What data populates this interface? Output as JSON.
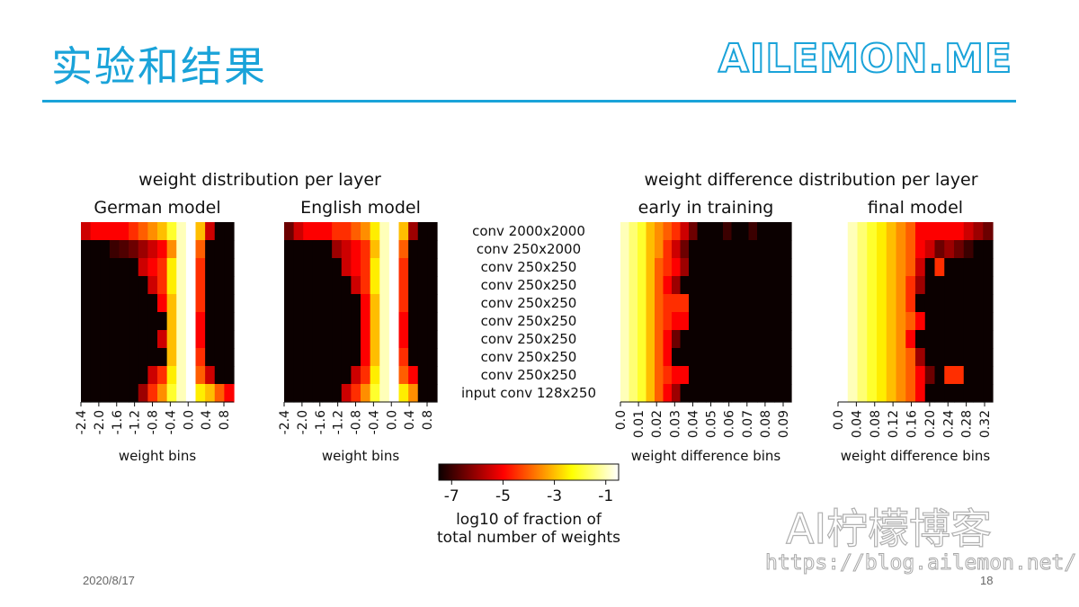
{
  "slide": {
    "title": "实验和结果",
    "brand": "AILEMON.ME",
    "date": "2020/8/17",
    "page": "18",
    "watermark_name": "AI柠檬博客",
    "watermark_url": "https://blog.ailemon.net/"
  },
  "chart_data": {
    "type": "heatmap",
    "colormap": "hot",
    "group_titles": [
      "weight distribution per layer",
      "weight difference distribution per layer"
    ],
    "row_labels": [
      "conv 2000x2000",
      "conv 250x2000",
      "conv 250x250",
      "conv 250x250",
      "conv 250x250",
      "conv 250x250",
      "conv 250x250",
      "conv 250x250",
      "conv 250x250",
      "input conv 128x250"
    ],
    "colorbar": {
      "ticks": [
        "-7",
        "-5",
        "-3",
        "-1"
      ],
      "range": [
        -7.5,
        -0.5
      ],
      "label_lines": [
        "log10 of fraction of",
        "total number of weights"
      ]
    },
    "panels": [
      {
        "title": "German model",
        "xlabel": "weight bins",
        "xticks": [
          "-2.4",
          "-2.0",
          "-1.6",
          "-1.2",
          "-0.8",
          "-0.4",
          "0.0",
          "0.4",
          "0.8"
        ],
        "values": [
          [
            -5.5,
            -5.0,
            -5.0,
            -5.0,
            -5.0,
            -4.5,
            -4.0,
            -3.5,
            -3.0,
            -2.0,
            -1.0,
            -0.5,
            -3.0,
            -5.5,
            -7.5,
            -7.5
          ],
          [
            -7.5,
            -7.5,
            -7.5,
            -7.0,
            -6.8,
            -6.5,
            -6.0,
            -5.5,
            -5.0,
            -3.5,
            -1.0,
            -0.5,
            -4.0,
            -7.5,
            -7.5,
            -7.5
          ],
          [
            -7.5,
            -7.5,
            -7.5,
            -7.5,
            -7.5,
            -7.5,
            -5.5,
            -5.0,
            -4.5,
            -2.5,
            -1.0,
            -0.5,
            -4.5,
            -7.5,
            -7.5,
            -7.5
          ],
          [
            -7.5,
            -7.5,
            -7.5,
            -7.5,
            -7.5,
            -7.5,
            -7.5,
            -5.5,
            -4.5,
            -2.5,
            -1.0,
            -0.5,
            -4.5,
            -7.5,
            -7.5,
            -7.5
          ],
          [
            -7.5,
            -7.5,
            -7.5,
            -7.5,
            -7.5,
            -7.5,
            -7.5,
            -7.5,
            -5.0,
            -3.0,
            -1.0,
            -0.5,
            -4.5,
            -7.5,
            -7.5,
            -7.5
          ],
          [
            -7.5,
            -7.5,
            -7.5,
            -7.5,
            -7.5,
            -7.5,
            -7.5,
            -7.5,
            -7.5,
            -3.0,
            -1.0,
            -0.5,
            -5.0,
            -7.5,
            -7.5,
            -7.5
          ],
          [
            -7.5,
            -7.5,
            -7.5,
            -7.5,
            -7.5,
            -7.5,
            -7.5,
            -7.5,
            -5.5,
            -3.0,
            -1.0,
            -0.5,
            -5.0,
            -7.5,
            -7.5,
            -7.5
          ],
          [
            -7.5,
            -7.5,
            -7.5,
            -7.5,
            -7.5,
            -7.5,
            -7.5,
            -7.5,
            -7.5,
            -3.0,
            -1.0,
            -0.5,
            -4.5,
            -7.5,
            -7.5,
            -7.5
          ],
          [
            -7.5,
            -7.5,
            -7.5,
            -7.5,
            -7.5,
            -7.5,
            -7.5,
            -5.5,
            -4.5,
            -2.5,
            -1.0,
            -0.5,
            -4.0,
            -5.5,
            -7.5,
            -7.5
          ],
          [
            -7.5,
            -7.5,
            -7.5,
            -7.5,
            -7.5,
            -7.5,
            -6.0,
            -4.5,
            -3.5,
            -2.0,
            -1.0,
            -0.5,
            -2.5,
            -3.0,
            -4.0,
            -5.0
          ]
        ]
      },
      {
        "title": "English model",
        "xlabel": "weight bins",
        "xticks": [
          "-2.4",
          "-2.0",
          "-1.6",
          "-1.2",
          "-0.8",
          "-0.4",
          "0.0",
          "0.4",
          "0.8"
        ],
        "values": [
          [
            -6.5,
            -5.5,
            -5.0,
            -5.0,
            -5.0,
            -4.5,
            -4.5,
            -4.0,
            -3.5,
            -2.5,
            -1.0,
            -0.5,
            -3.0,
            -6.0,
            -7.5,
            -7.5
          ],
          [
            -7.5,
            -7.5,
            -7.5,
            -7.5,
            -7.5,
            -6.0,
            -5.5,
            -5.0,
            -4.5,
            -3.0,
            -1.0,
            -0.5,
            -4.0,
            -7.5,
            -7.5,
            -7.5
          ],
          [
            -7.5,
            -7.5,
            -7.5,
            -7.5,
            -7.5,
            -7.5,
            -5.5,
            -5.0,
            -4.5,
            -2.5,
            -1.0,
            -0.5,
            -4.5,
            -7.5,
            -7.5,
            -7.5
          ],
          [
            -7.5,
            -7.5,
            -7.5,
            -7.5,
            -7.5,
            -7.5,
            -7.5,
            -5.5,
            -4.5,
            -2.5,
            -1.0,
            -0.5,
            -4.5,
            -7.5,
            -7.5,
            -7.5
          ],
          [
            -7.5,
            -7.5,
            -7.5,
            -7.5,
            -7.5,
            -7.5,
            -7.5,
            -7.5,
            -5.0,
            -3.0,
            -1.0,
            -0.5,
            -4.5,
            -7.5,
            -7.5,
            -7.5
          ],
          [
            -7.5,
            -7.5,
            -7.5,
            -7.5,
            -7.5,
            -7.5,
            -7.5,
            -7.5,
            -5.0,
            -3.0,
            -1.0,
            -0.5,
            -5.0,
            -7.5,
            -7.5,
            -7.5
          ],
          [
            -7.5,
            -7.5,
            -7.5,
            -7.5,
            -7.5,
            -7.5,
            -7.5,
            -7.5,
            -5.0,
            -3.0,
            -1.0,
            -0.5,
            -5.0,
            -7.5,
            -7.5,
            -7.5
          ],
          [
            -7.5,
            -7.5,
            -7.5,
            -7.5,
            -7.5,
            -7.5,
            -7.5,
            -7.5,
            -5.0,
            -3.0,
            -1.0,
            -0.5,
            -4.5,
            -7.5,
            -7.5,
            -7.5
          ],
          [
            -7.5,
            -7.5,
            -7.5,
            -7.5,
            -7.5,
            -7.5,
            -7.5,
            -5.5,
            -4.5,
            -2.5,
            -1.0,
            -0.5,
            -4.0,
            -5.0,
            -7.5,
            -7.5
          ],
          [
            -7.5,
            -7.5,
            -7.5,
            -7.5,
            -7.5,
            -7.5,
            -5.5,
            -4.5,
            -3.5,
            -2.0,
            -1.0,
            -0.5,
            -2.5,
            -3.5,
            -7.5,
            -7.5
          ]
        ]
      },
      {
        "title": "early in training",
        "xlabel": "weight difference bins",
        "xticks": [
          "0.0",
          "0.01",
          "0.02",
          "0.03",
          "0.04",
          "0.05",
          "0.06",
          "0.07",
          "0.08",
          "0.09"
        ],
        "values": [
          [
            -1.0,
            -1.5,
            -2.0,
            -3.0,
            -3.5,
            -4.0,
            -4.5,
            -5.5,
            -6.5,
            -7.5,
            -7.5,
            -7.5,
            -7.0,
            -7.5,
            -7.5,
            -7.0,
            -7.5,
            -7.5,
            -7.5,
            -7.5
          ],
          [
            -1.0,
            -1.5,
            -2.0,
            -3.0,
            -3.5,
            -4.5,
            -5.5,
            -6.5,
            -7.5,
            -7.5,
            -7.5,
            -7.5,
            -7.5,
            -7.5,
            -7.5,
            -7.5,
            -7.5,
            -7.5,
            -7.5,
            -7.5
          ],
          [
            -1.0,
            -1.5,
            -2.0,
            -3.0,
            -4.0,
            -4.5,
            -5.0,
            -6.0,
            -7.5,
            -7.5,
            -7.5,
            -7.5,
            -7.5,
            -7.5,
            -7.5,
            -7.5,
            -7.5,
            -7.5,
            -7.5,
            -7.5
          ],
          [
            -1.0,
            -1.5,
            -2.0,
            -3.0,
            -4.0,
            -5.0,
            -6.0,
            -7.5,
            -7.5,
            -7.5,
            -7.5,
            -7.5,
            -7.5,
            -7.5,
            -7.5,
            -7.5,
            -7.5,
            -7.5,
            -7.5,
            -7.5
          ],
          [
            -1.0,
            -1.5,
            -2.0,
            -3.0,
            -4.0,
            -4.5,
            -4.5,
            -4.5,
            -7.5,
            -7.5,
            -7.5,
            -7.5,
            -7.5,
            -7.5,
            -7.5,
            -7.5,
            -7.5,
            -7.5,
            -7.5,
            -7.5
          ],
          [
            -1.0,
            -1.5,
            -2.0,
            -3.0,
            -4.0,
            -4.5,
            -5.0,
            -5.0,
            -7.5,
            -7.5,
            -7.5,
            -7.5,
            -7.5,
            -7.5,
            -7.5,
            -7.5,
            -7.5,
            -7.5,
            -7.5,
            -7.5
          ],
          [
            -1.0,
            -1.5,
            -2.0,
            -3.0,
            -4.0,
            -5.0,
            -6.5,
            -7.5,
            -7.5,
            -7.5,
            -7.5,
            -7.5,
            -7.5,
            -7.5,
            -7.5,
            -7.5,
            -7.5,
            -7.5,
            -7.5,
            -7.5
          ],
          [
            -1.0,
            -1.5,
            -2.0,
            -3.0,
            -4.0,
            -5.0,
            -7.5,
            -7.5,
            -7.5,
            -7.5,
            -7.5,
            -7.5,
            -7.5,
            -7.5,
            -7.5,
            -7.5,
            -7.5,
            -7.5,
            -7.5,
            -7.5
          ],
          [
            -1.0,
            -1.5,
            -2.0,
            -3.0,
            -4.0,
            -4.5,
            -5.0,
            -5.0,
            -7.5,
            -7.5,
            -7.5,
            -7.5,
            -7.5,
            -7.5,
            -7.5,
            -7.5,
            -7.5,
            -7.5,
            -7.5,
            -7.5
          ],
          [
            -1.0,
            -1.5,
            -2.0,
            -3.0,
            -4.0,
            -5.0,
            -6.0,
            -7.5,
            -7.5,
            -7.5,
            -7.5,
            -7.5,
            -7.5,
            -7.5,
            -7.5,
            -7.5,
            -7.5,
            -7.5,
            -7.5,
            -7.5
          ]
        ]
      },
      {
        "title": "final model",
        "xlabel": "weight difference bins",
        "xticks": [
          "0.0",
          "0.04",
          "0.08",
          "0.12",
          "0.16",
          "0.20",
          "0.24",
          "0.28",
          "0.32"
        ],
        "values": [
          [
            -0.5,
            -1.0,
            -1.5,
            -2.0,
            -2.5,
            -3.0,
            -3.5,
            -4.0,
            -5.0,
            -5.0,
            -5.0,
            -5.0,
            -5.0,
            -5.5,
            -6.0,
            -6.5
          ],
          [
            -0.5,
            -1.0,
            -1.5,
            -2.0,
            -2.5,
            -3.0,
            -3.5,
            -4.0,
            -5.0,
            -5.5,
            -6.5,
            -6.0,
            -6.5,
            -7.0,
            -7.5,
            -7.5
          ],
          [
            -0.5,
            -1.0,
            -1.5,
            -2.0,
            -2.5,
            -3.0,
            -3.5,
            -4.0,
            -5.5,
            -7.5,
            -4.5,
            -7.5,
            -7.5,
            -7.5,
            -7.5,
            -7.5
          ],
          [
            -0.5,
            -1.0,
            -1.5,
            -2.0,
            -2.5,
            -3.0,
            -3.5,
            -4.5,
            -6.0,
            -7.5,
            -7.5,
            -7.5,
            -7.5,
            -7.5,
            -7.5,
            -7.5
          ],
          [
            -0.5,
            -1.0,
            -1.5,
            -2.0,
            -2.5,
            -3.0,
            -3.5,
            -4.5,
            -7.5,
            -7.5,
            -7.5,
            -7.5,
            -7.5,
            -7.5,
            -7.5,
            -7.5
          ],
          [
            -0.5,
            -1.0,
            -1.5,
            -2.0,
            -2.5,
            -3.0,
            -3.5,
            -4.0,
            -5.0,
            -7.5,
            -7.5,
            -7.5,
            -7.5,
            -7.5,
            -7.5,
            -7.5
          ],
          [
            -0.5,
            -1.0,
            -1.5,
            -2.0,
            -2.5,
            -3.0,
            -3.5,
            -5.0,
            -7.5,
            -7.5,
            -7.5,
            -7.5,
            -7.5,
            -7.5,
            -7.5,
            -7.5
          ],
          [
            -0.5,
            -1.0,
            -1.5,
            -2.0,
            -2.5,
            -3.0,
            -3.5,
            -4.0,
            -6.0,
            -7.5,
            -7.5,
            -7.5,
            -7.5,
            -7.5,
            -7.5,
            -7.5
          ],
          [
            -0.5,
            -1.0,
            -1.5,
            -2.0,
            -2.5,
            -3.0,
            -3.5,
            -4.0,
            -5.0,
            -6.5,
            -7.5,
            -4.5,
            -4.5,
            -7.5,
            -7.5,
            -7.5
          ],
          [
            -0.5,
            -1.0,
            -1.5,
            -2.0,
            -2.5,
            -3.0,
            -3.5,
            -4.0,
            -5.0,
            -7.5,
            -7.5,
            -7.5,
            -7.5,
            -7.5,
            -7.5,
            -7.5
          ]
        ]
      }
    ]
  }
}
